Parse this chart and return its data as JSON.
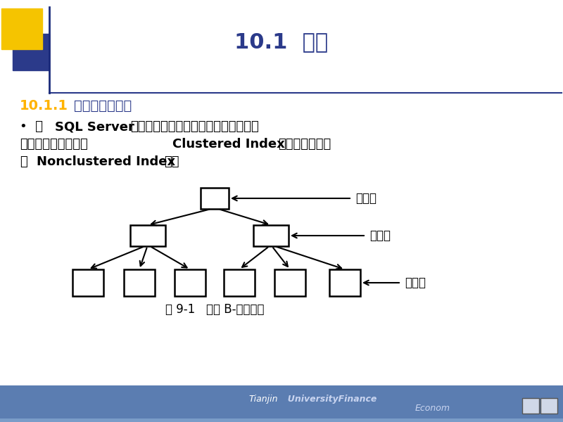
{
  "title": "10.1  索引",
  "title_color": "#2B3A8A",
  "bg_color": "#FFFFFF",
  "section_num_color": "#FFB300",
  "section_text_color": "#2B3A8A",
  "body_text_color": "#000000",
  "caption": "图 9-1   索引 B-树结构图",
  "label_root": "根节点",
  "label_mid": "中间层",
  "label_leaf": "叶结点",
  "header_yellow_color": "#F5C400",
  "header_blue_color": "#2B3A8A",
  "bottom_bar_color": "#5B7DB1",
  "node_edge_color": "#000000",
  "arrow_color": "#000000"
}
